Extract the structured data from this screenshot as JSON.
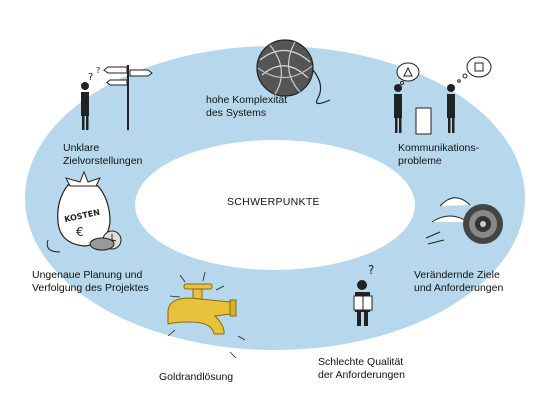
{
  "diagram": {
    "center": {
      "label": "SCHWERPUNKTE"
    },
    "items": [
      {
        "lines": [
          "hohe Komplexität",
          "des Systems"
        ],
        "icon": "yarn-ball-icon"
      },
      {
        "lines": [
          "Kommunikations-",
          "probleme"
        ],
        "icon": "two-people-thinking-icon"
      },
      {
        "lines": [
          "Verändernde Ziele",
          "und Anforderungen"
        ],
        "icon": "flying-target-icon"
      },
      {
        "lines": [
          "Schlechte Qualität",
          "der Anforderungen"
        ],
        "icon": "confused-reader-icon"
      },
      {
        "lines": [
          "Goldrandlösung"
        ],
        "icon": "golden-faucet-icon"
      },
      {
        "lines": [
          "Ungenaue Planung und",
          "Verfolgung des Projektes"
        ],
        "icon": "cost-bag-icon"
      },
      {
        "lines": [
          "Unklare",
          "Zielvorstellungen"
        ],
        "icon": "person-signpost-icon"
      }
    ],
    "icon_texts": {
      "cost_bag": "KOSTEN",
      "euro": "€"
    },
    "colors": {
      "ring": "#b7d7ec",
      "center": "#ffffff",
      "text": "#111111",
      "faucet": "#e8c23a"
    }
  }
}
